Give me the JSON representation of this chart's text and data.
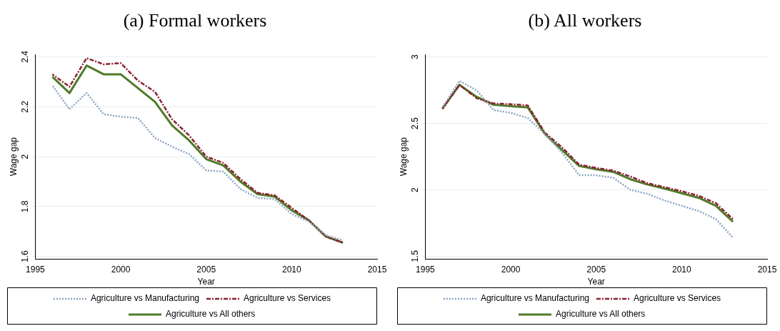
{
  "chart_data": [
    {
      "type": "line",
      "title": "(a) Formal workers",
      "xlabel": "Year",
      "ylabel": "Wage gap",
      "x": [
        1996,
        1997,
        1998,
        1999,
        2000,
        2001,
        2002,
        2003,
        2004,
        2005,
        2006,
        2007,
        2008,
        2009,
        2010,
        2011,
        2012,
        2013
      ],
      "xlim": [
        1995,
        2015
      ],
      "xticks": [
        1995,
        2000,
        2005,
        2010,
        2015
      ],
      "ylim": [
        1.59,
        2.41
      ],
      "yticks": [
        1.6,
        1.8,
        2,
        2.2,
        2.4
      ],
      "grid": "y",
      "legend": "bottom",
      "marker": "none",
      "series": [
        {
          "name": "Agriculture vs Manufacturing",
          "color": "#8aa4c0",
          "line_style": "dotted",
          "values": [
            2.285,
            2.19,
            2.255,
            2.17,
            2.16,
            2.155,
            2.075,
            2.04,
            2.01,
            1.945,
            1.94,
            1.87,
            1.835,
            1.83,
            1.77,
            1.74,
            1.685,
            1.665
          ]
        },
        {
          "name": "Agriculture vs Services",
          "color": "#8b2232",
          "line_style": "dashed",
          "values": [
            2.33,
            2.28,
            2.395,
            2.37,
            2.375,
            2.305,
            2.26,
            2.15,
            2.085,
            2.0,
            1.975,
            1.91,
            1.855,
            1.845,
            1.795,
            1.745,
            1.68,
            1.655
          ]
        },
        {
          "name": "Agriculture vs All others",
          "color": "#4f7a28",
          "line_style": "solid",
          "values": [
            2.32,
            2.255,
            2.365,
            2.33,
            2.33,
            2.275,
            2.22,
            2.125,
            2.065,
            1.99,
            1.965,
            1.9,
            1.85,
            1.84,
            1.785,
            1.745,
            1.68,
            1.655
          ]
        }
      ]
    },
    {
      "type": "line",
      "title": "(b) All workers",
      "xlabel": "Year",
      "ylabel": "Wage gap",
      "x": [
        1996,
        1997,
        1998,
        1999,
        2000,
        2001,
        2002,
        2003,
        2004,
        2005,
        2006,
        2007,
        2008,
        2009,
        2010,
        2011,
        2012,
        2013
      ],
      "xlim": [
        1995,
        2015
      ],
      "xticks": [
        1995,
        2000,
        2005,
        2010,
        2015
      ],
      "ylim": [
        1.48,
        3.02
      ],
      "yticks": [
        1.5,
        2,
        2.5,
        3
      ],
      "grid": "y",
      "legend": "bottom",
      "marker": "none",
      "series": [
        {
          "name": "Agriculture vs Manufacturing",
          "color": "#8aa4c0",
          "line_style": "dotted",
          "values": [
            2.62,
            2.82,
            2.75,
            2.6,
            2.58,
            2.54,
            2.42,
            2.28,
            2.11,
            2.11,
            2.09,
            2.0,
            1.97,
            1.92,
            1.88,
            1.84,
            1.78,
            1.64
          ]
        },
        {
          "name": "Agriculture vs Services",
          "color": "#8b2232",
          "line_style": "dashed",
          "values": [
            2.61,
            2.79,
            2.69,
            2.65,
            2.645,
            2.635,
            2.43,
            2.32,
            2.19,
            2.165,
            2.145,
            2.1,
            2.05,
            2.02,
            1.99,
            1.955,
            1.9,
            1.78
          ]
        },
        {
          "name": "Agriculture vs All others",
          "color": "#4f7a28",
          "line_style": "solid",
          "values": [
            2.61,
            2.79,
            2.7,
            2.64,
            2.63,
            2.62,
            2.42,
            2.3,
            2.18,
            2.155,
            2.135,
            2.08,
            2.04,
            2.01,
            1.975,
            1.94,
            1.88,
            1.76
          ]
        }
      ]
    }
  ]
}
